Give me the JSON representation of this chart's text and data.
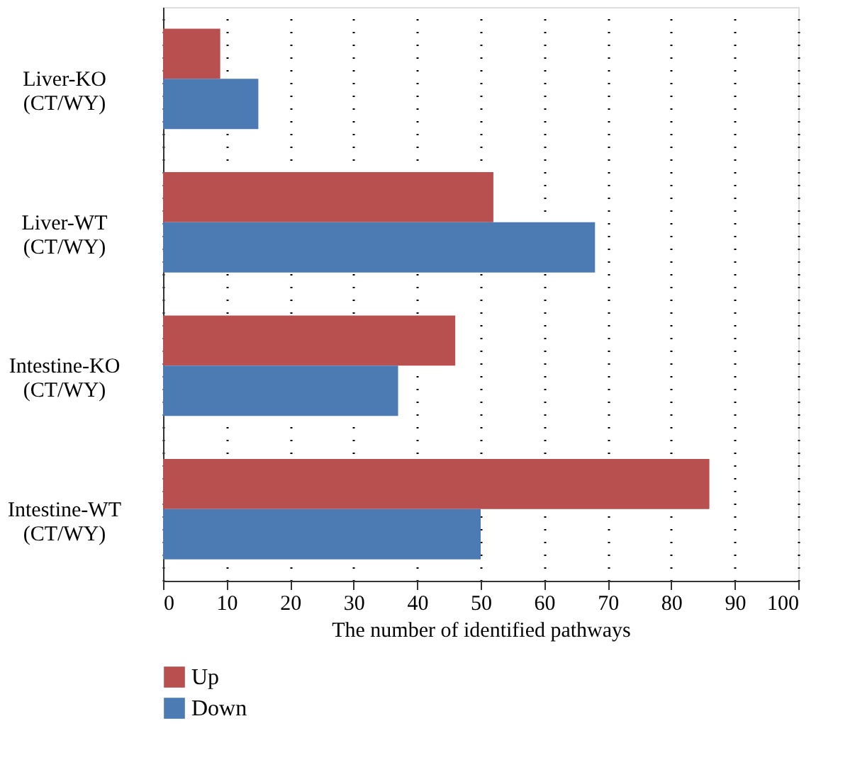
{
  "chart_data": {
    "type": "bar",
    "orientation": "horizontal",
    "categories": [
      "Liver-KO\n(CT/WY)",
      "Liver-WT\n(CT/WY)",
      "Intestine-KO\n(CT/WY)",
      "Intestine-WT\n(CT/WY)"
    ],
    "series": [
      {
        "name": "Up",
        "color": "#b85050",
        "values": [
          9,
          52,
          46,
          86
        ]
      },
      {
        "name": "Down",
        "color": "#4c7bb3",
        "values": [
          15,
          68,
          37,
          50
        ]
      }
    ],
    "xlabel": "The number of identified pathways",
    "xlim": [
      0,
      100
    ],
    "xticks": [
      0,
      10,
      20,
      30,
      40,
      50,
      60,
      70,
      80,
      90,
      100
    ],
    "grid": "x",
    "legend": "bottom left"
  }
}
